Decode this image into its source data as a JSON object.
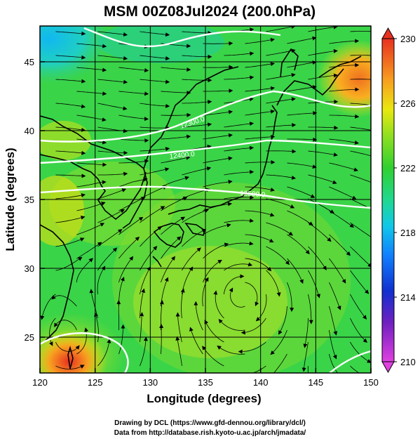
{
  "title": "MSM 00Z08Jul2024 (200.0hPa)",
  "x_axis": {
    "label": "Longitude (degrees)",
    "ticks": [
      120,
      125,
      130,
      135,
      140,
      145,
      150
    ],
    "range": [
      120,
      150
    ]
  },
  "y_axis": {
    "label": "Latitude  (degrees)",
    "ticks": [
      25,
      30,
      35,
      40,
      45
    ],
    "range": [
      22.4,
      47.6
    ]
  },
  "colorbar": {
    "ticks": [
      230,
      226,
      222,
      218,
      214,
      210
    ],
    "range": [
      210,
      230
    ]
  },
  "contours": [
    {
      "label": "12300.0"
    },
    {
      "label": "12400.0"
    },
    {
      "label": "12500.0"
    }
  ],
  "credits": {
    "line1": "Drawing by DCL (https://www.gfd-dennou.org/library/dcl/)",
    "line2": "Data from http://database.rish.kyoto-u.ac.jp/arch/jmadata/"
  }
}
